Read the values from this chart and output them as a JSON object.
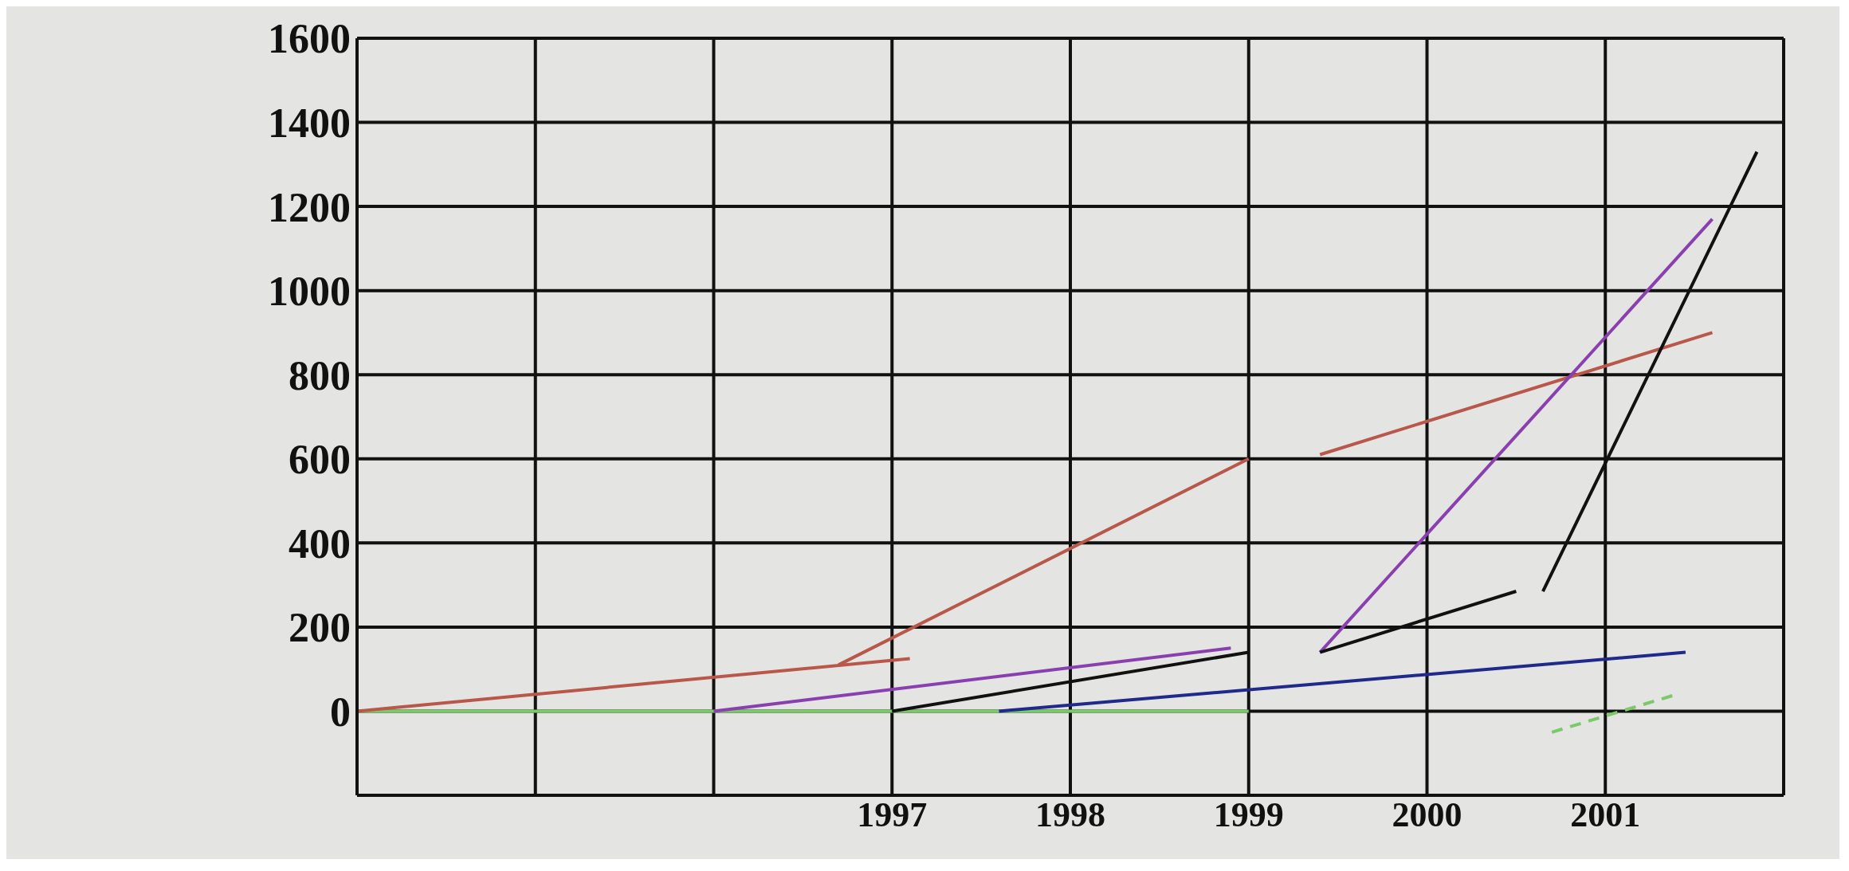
{
  "chart_data": {
    "type": "line",
    "xlim": [
      1994,
      2002
    ],
    "xticks": [
      {
        "value": 1994,
        "label": null
      },
      {
        "value": 1995,
        "label": null
      },
      {
        "value": 1996,
        "label": null
      },
      1997,
      1998,
      1999,
      2000,
      2001
    ],
    "ylim": [
      -200,
      1600
    ],
    "yticks": [
      0,
      200,
      400,
      600,
      800,
      1000,
      1200,
      1400,
      1600
    ],
    "grid": true,
    "marker": "none",
    "line_style": "solid",
    "series": [
      {
        "color": "#7cc96a",
        "x": [
          1994,
          1999
        ],
        "values": [
          0,
          0
        ]
      },
      {
        "color": "#b8574a",
        "x": [
          1994,
          1997.1
        ],
        "values": [
          0,
          125
        ]
      },
      {
        "color": "#b8574a",
        "x": [
          1996.7,
          1999
        ],
        "values": [
          110,
          600
        ]
      },
      {
        "color": "#b8574a",
        "x": [
          1999.4,
          2001.6
        ],
        "values": [
          610,
          900
        ]
      },
      {
        "color": "#8a3fb0",
        "x": [
          1996,
          1998.9
        ],
        "values": [
          0,
          150
        ]
      },
      {
        "color": "#8a3fb0",
        "x": [
          1999.4,
          2001.6
        ],
        "values": [
          140,
          1170
        ]
      },
      {
        "color": "#111111",
        "x": [
          1997,
          1999
        ],
        "values": [
          0,
          140
        ]
      },
      {
        "color": "#111111",
        "x": [
          1999.4,
          2000.5
        ],
        "values": [
          140,
          285
        ]
      },
      {
        "color": "#111111",
        "x": [
          2000.65,
          2001.85
        ],
        "values": [
          285,
          1330
        ]
      },
      {
        "color": "#1f2a8a",
        "x": [
          1997.6,
          2001.45
        ],
        "values": [
          0,
          140
        ]
      },
      {
        "color": "#7cc96a",
        "x": [
          2000.7,
          2001.4
        ],
        "values": [
          -50,
          40
        ],
        "line_style": "dashed"
      }
    ]
  }
}
